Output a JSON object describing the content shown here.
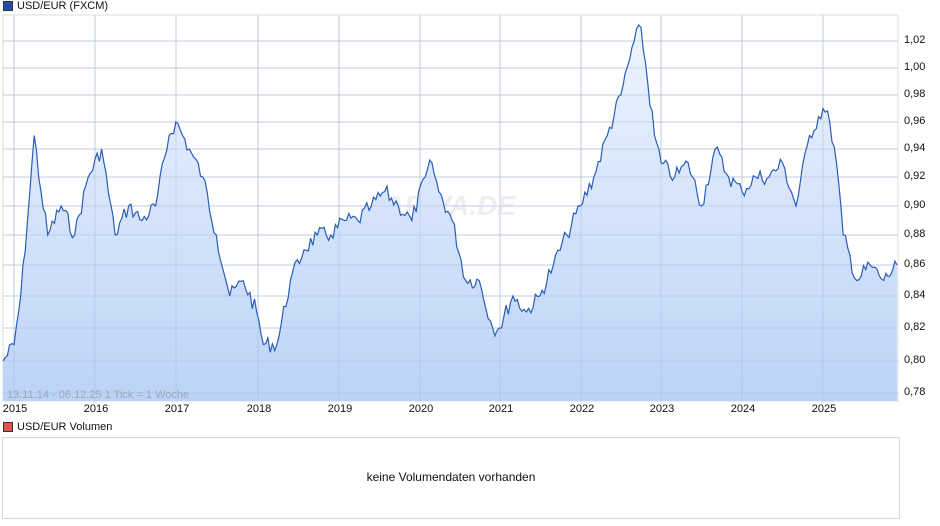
{
  "header": {
    "main_legend_label": "USD/EUR (FXCM)",
    "main_legend_color": "#1f4fa3",
    "volume_legend_label": "USD/EUR Volumen",
    "volume_legend_color": "#d9534f"
  },
  "chart": {
    "range_note": "13.11.14 - 06.12.25   1 Tick = 1 Woche",
    "watermark": "ARIVA.DE",
    "line_color": "#2a5db8",
    "fill_top_color": "#eef4fd",
    "fill_bottom_color": "#bcd3f7",
    "grid_color": "#dcdcdc"
  },
  "volume": {
    "message": "keine Volumendaten vorhanden"
  },
  "chart_data": {
    "type": "area",
    "title": "USD/EUR (FXCM)",
    "xlabel": "",
    "ylabel": "",
    "ylim": [
      0.78,
      1.03
    ],
    "grid": true,
    "legend_position": "top-left",
    "x_tick_labels": [
      "2015",
      "2016",
      "2017",
      "2018",
      "2019",
      "2020",
      "2021",
      "2022",
      "2023",
      "2024",
      "2025"
    ],
    "y_tick_labels": [
      "1,02",
      "1,00",
      "0,98",
      "0,96",
      "0,94",
      "0,92",
      "0,90",
      "0,88",
      "0,86",
      "0,84",
      "0,82",
      "0,80",
      "0,78"
    ],
    "annotation": "13.11.14 - 06.12.25   1 Tick = 1 Woche",
    "series": [
      {
        "name": "USD/EUR",
        "x": [
          "2014-11",
          "2015-01",
          "2015-02",
          "2015-03",
          "2015-04",
          "2015-05",
          "2015-06",
          "2015-08",
          "2015-10",
          "2015-12",
          "2016-02",
          "2016-04",
          "2016-06",
          "2016-08",
          "2016-10",
          "2016-12",
          "2017-01",
          "2017-03",
          "2017-05",
          "2017-07",
          "2017-09",
          "2017-11",
          "2018-01",
          "2018-02",
          "2018-04",
          "2018-06",
          "2018-08",
          "2018-10",
          "2018-12",
          "2019-02",
          "2019-04",
          "2019-06",
          "2019-08",
          "2019-10",
          "2019-12",
          "2020-02",
          "2020-03",
          "2020-04",
          "2020-06",
          "2020-08",
          "2020-10",
          "2020-12",
          "2021-01",
          "2021-03",
          "2021-05",
          "2021-07",
          "2021-09",
          "2021-11",
          "2022-01",
          "2022-03",
          "2022-05",
          "2022-07",
          "2022-09",
          "2022-10",
          "2022-12",
          "2023-01",
          "2023-03",
          "2023-05",
          "2023-07",
          "2023-09",
          "2023-11",
          "2024-01",
          "2024-03",
          "2024-05",
          "2024-07",
          "2024-09",
          "2024-11",
          "2025-01",
          "2025-02",
          "2025-03",
          "2025-04",
          "2025-06",
          "2025-08",
          "2025-10",
          "2025-12"
        ],
        "values": [
          0.8,
          0.81,
          0.84,
          0.89,
          0.95,
          0.91,
          0.88,
          0.9,
          0.88,
          0.92,
          0.94,
          0.88,
          0.9,
          0.89,
          0.9,
          0.95,
          0.96,
          0.94,
          0.92,
          0.88,
          0.84,
          0.85,
          0.83,
          0.81,
          0.81,
          0.85,
          0.87,
          0.88,
          0.88,
          0.89,
          0.89,
          0.9,
          0.91,
          0.9,
          0.89,
          0.92,
          0.93,
          0.91,
          0.89,
          0.85,
          0.85,
          0.82,
          0.82,
          0.84,
          0.83,
          0.84,
          0.86,
          0.88,
          0.9,
          0.92,
          0.95,
          0.98,
          1.02,
          1.03,
          0.95,
          0.93,
          0.92,
          0.93,
          0.9,
          0.94,
          0.92,
          0.91,
          0.92,
          0.92,
          0.93,
          0.9,
          0.95,
          0.97,
          0.96,
          0.93,
          0.88,
          0.85,
          0.86,
          0.85,
          0.86
        ]
      }
    ]
  }
}
